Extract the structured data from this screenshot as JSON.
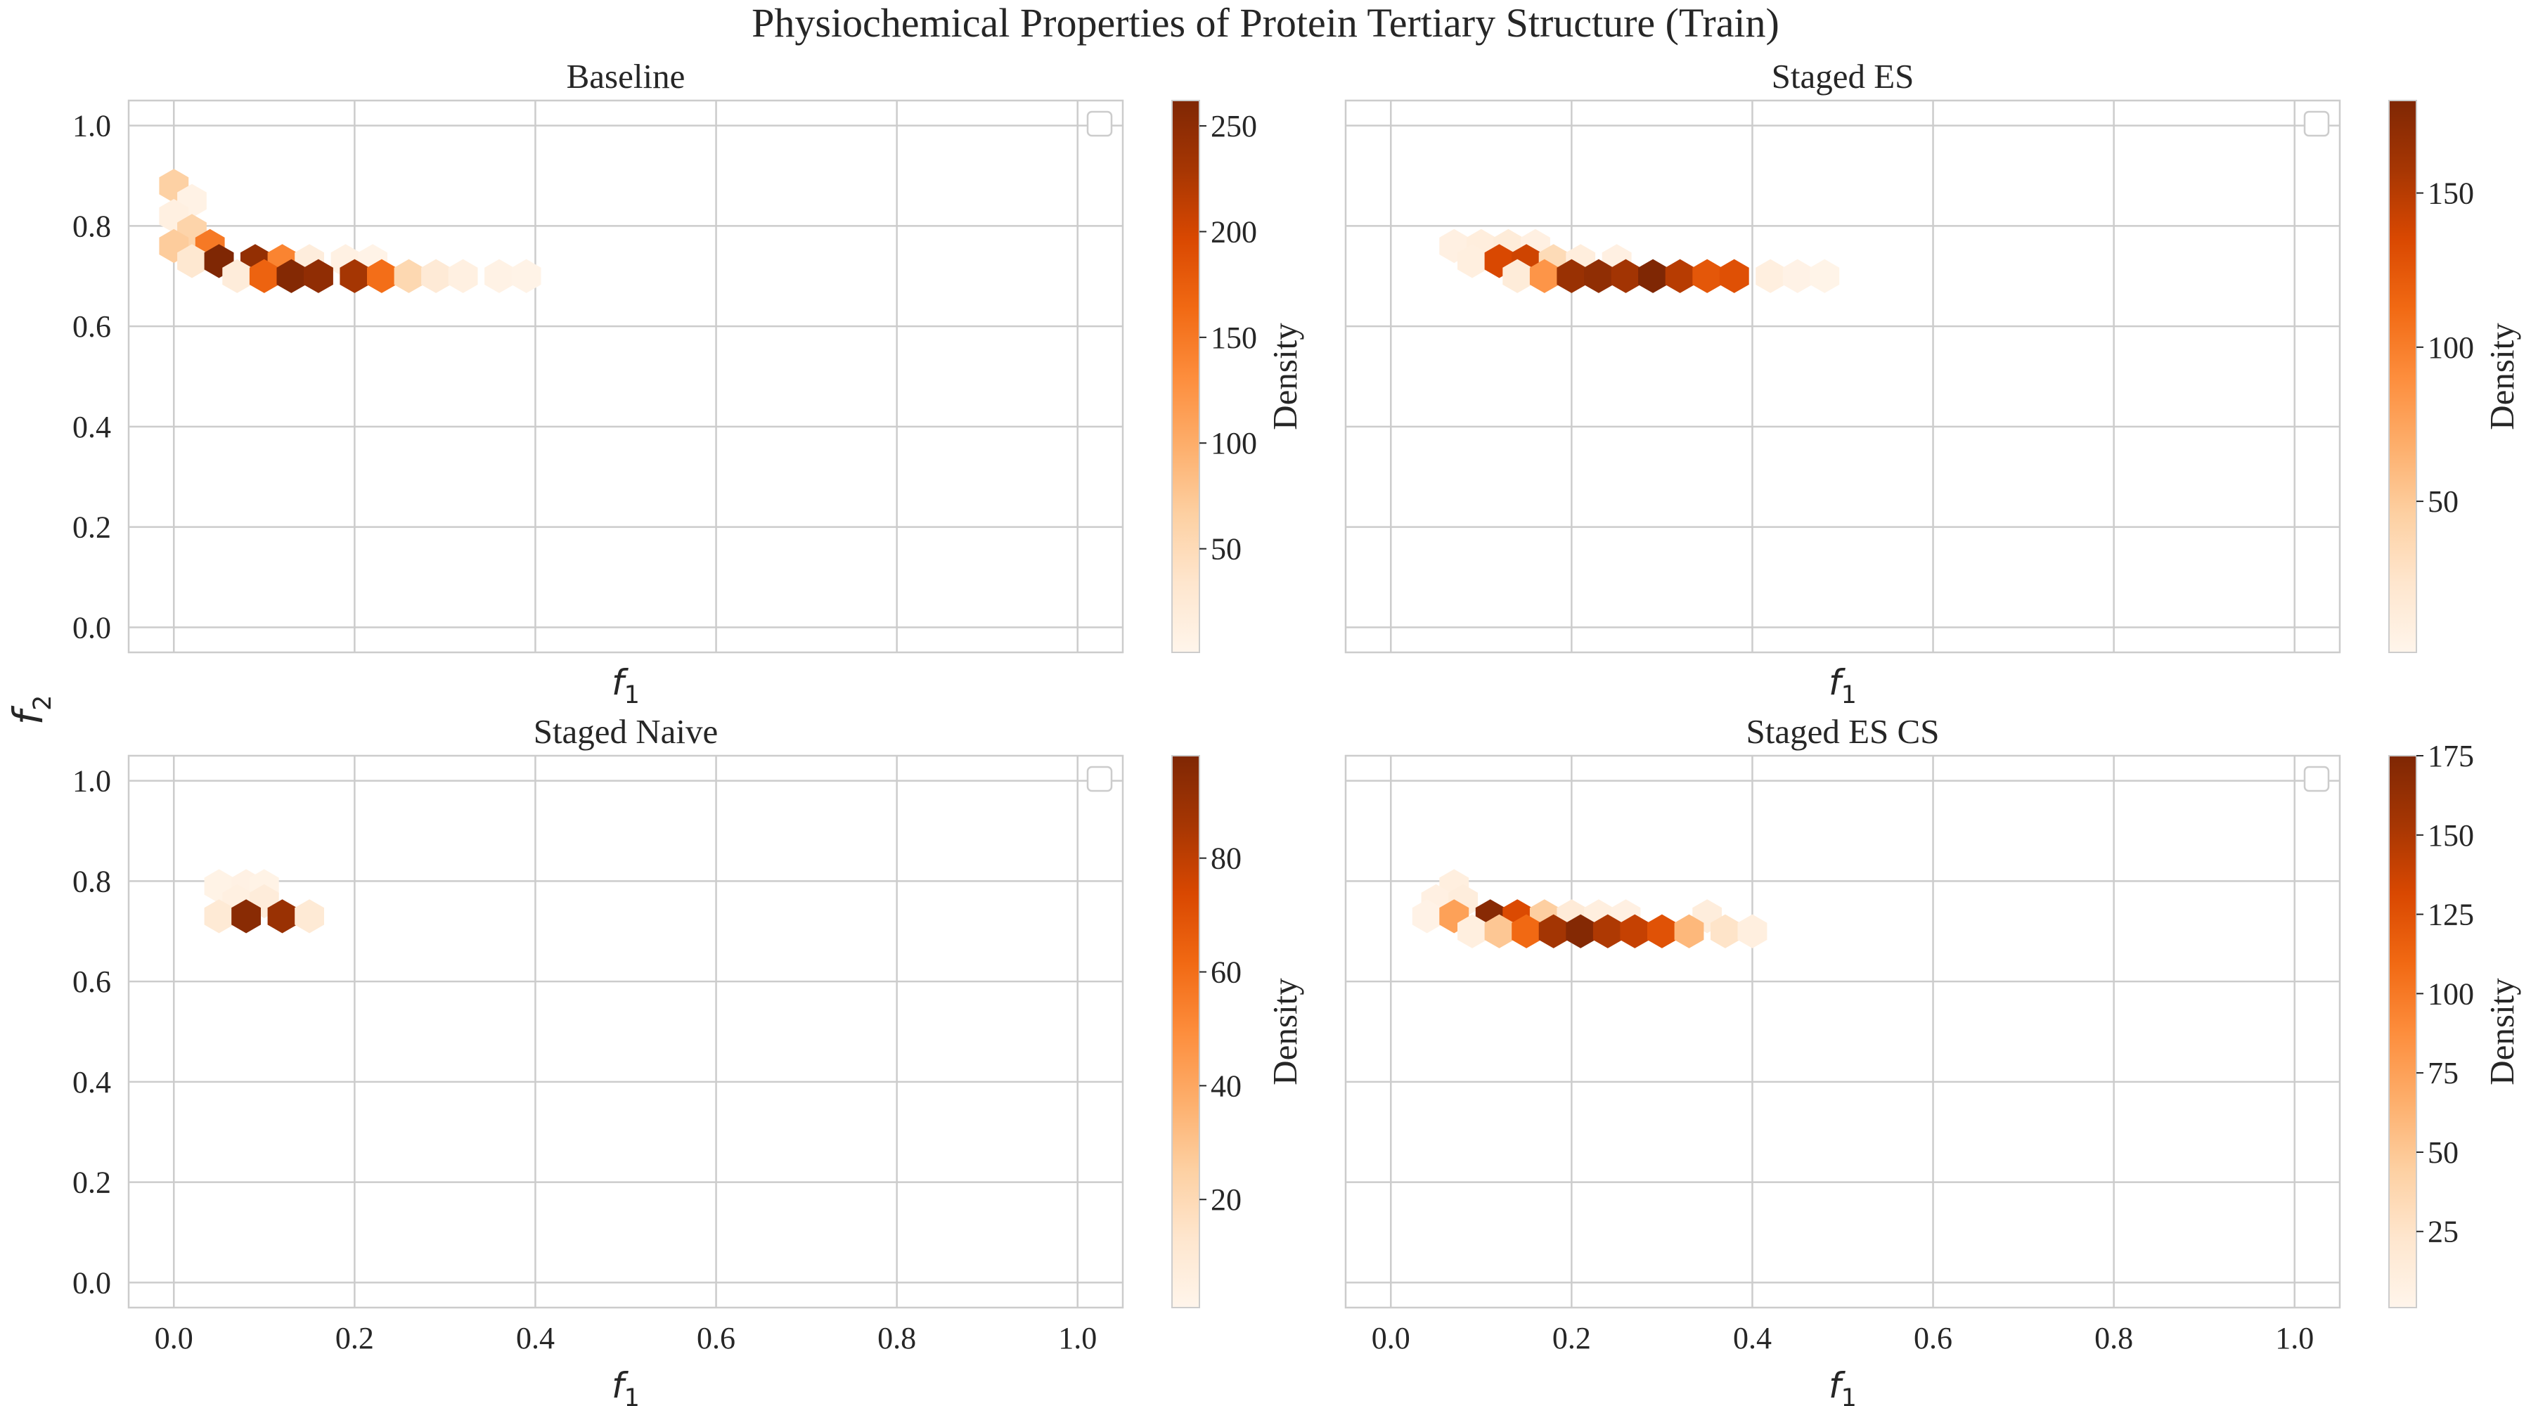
{
  "chart_data": {
    "type": "heatmap",
    "subtype": "hexbin",
    "suptitle": "Physiochemical Properties of Protein Tertiary Structure (Train)",
    "shared_ylabel": {
      "symbol": "f",
      "subscript": "2"
    },
    "xlabel": {
      "symbol": "f",
      "subscript": "1"
    },
    "colormap": "Oranges",
    "grid": true,
    "legend": "top-right (empty)",
    "panels": [
      {
        "title": "Baseline",
        "xlim": [
          -0.05,
          1.05
        ],
        "ylim": [
          -0.05,
          1.05
        ],
        "xticks": [
          "0.0",
          "0.2",
          "0.4",
          "0.6",
          "0.8",
          "1.0"
        ],
        "yticks": [
          "0.0",
          "0.2",
          "0.4",
          "0.6",
          "0.8",
          "1.0"
        ],
        "show_xticklabels": false,
        "show_yticklabels": true,
        "colorbar": {
          "label": "Density",
          "min": 1,
          "max": 262,
          "ticks": [
            "50",
            "100",
            "150",
            "200",
            "250"
          ]
        },
        "bins": [
          {
            "x": 0.0,
            "y": 0.88,
            "v": 65
          },
          {
            "x": 0.02,
            "y": 0.85,
            "v": 8
          },
          {
            "x": 0.0,
            "y": 0.82,
            "v": 12
          },
          {
            "x": 0.02,
            "y": 0.79,
            "v": 60
          },
          {
            "x": 0.0,
            "y": 0.76,
            "v": 70
          },
          {
            "x": 0.04,
            "y": 0.76,
            "v": 150
          },
          {
            "x": 0.02,
            "y": 0.73,
            "v": 30
          },
          {
            "x": 0.05,
            "y": 0.73,
            "v": 262
          },
          {
            "x": 0.09,
            "y": 0.73,
            "v": 245
          },
          {
            "x": 0.12,
            "y": 0.73,
            "v": 140
          },
          {
            "x": 0.15,
            "y": 0.73,
            "v": 18
          },
          {
            "x": 0.19,
            "y": 0.73,
            "v": 10
          },
          {
            "x": 0.22,
            "y": 0.73,
            "v": 5
          },
          {
            "x": 0.07,
            "y": 0.7,
            "v": 20
          },
          {
            "x": 0.1,
            "y": 0.7,
            "v": 170
          },
          {
            "x": 0.13,
            "y": 0.7,
            "v": 258
          },
          {
            "x": 0.16,
            "y": 0.7,
            "v": 248
          },
          {
            "x": 0.2,
            "y": 0.7,
            "v": 230
          },
          {
            "x": 0.23,
            "y": 0.7,
            "v": 160
          },
          {
            "x": 0.26,
            "y": 0.7,
            "v": 55
          },
          {
            "x": 0.29,
            "y": 0.7,
            "v": 25
          },
          {
            "x": 0.32,
            "y": 0.7,
            "v": 12
          },
          {
            "x": 0.36,
            "y": 0.7,
            "v": 8
          },
          {
            "x": 0.39,
            "y": 0.7,
            "v": 5
          }
        ]
      },
      {
        "title": "Staged ES",
        "xlim": [
          -0.05,
          1.05
        ],
        "ylim": [
          -0.05,
          1.05
        ],
        "xticks": [
          "0.0",
          "0.2",
          "0.4",
          "0.6",
          "0.8",
          "1.0"
        ],
        "yticks": [
          "0.0",
          "0.2",
          "0.4",
          "0.6",
          "0.8",
          "1.0"
        ],
        "show_xticklabels": false,
        "show_yticklabels": false,
        "colorbar": {
          "label": "Density",
          "min": 1,
          "max": 180,
          "ticks": [
            "50",
            "100",
            "150"
          ]
        },
        "bins": [
          {
            "x": 0.07,
            "y": 0.76,
            "v": 8
          },
          {
            "x": 0.1,
            "y": 0.76,
            "v": 12
          },
          {
            "x": 0.13,
            "y": 0.76,
            "v": 15
          },
          {
            "x": 0.16,
            "y": 0.76,
            "v": 8
          },
          {
            "x": 0.09,
            "y": 0.73,
            "v": 10
          },
          {
            "x": 0.12,
            "y": 0.73,
            "v": 135
          },
          {
            "x": 0.15,
            "y": 0.73,
            "v": 140
          },
          {
            "x": 0.18,
            "y": 0.73,
            "v": 35
          },
          {
            "x": 0.21,
            "y": 0.73,
            "v": 12
          },
          {
            "x": 0.25,
            "y": 0.73,
            "v": 8
          },
          {
            "x": 0.14,
            "y": 0.7,
            "v": 15
          },
          {
            "x": 0.17,
            "y": 0.7,
            "v": 85
          },
          {
            "x": 0.2,
            "y": 0.7,
            "v": 165
          },
          {
            "x": 0.23,
            "y": 0.7,
            "v": 170
          },
          {
            "x": 0.26,
            "y": 0.7,
            "v": 160
          },
          {
            "x": 0.29,
            "y": 0.7,
            "v": 180
          },
          {
            "x": 0.32,
            "y": 0.7,
            "v": 150
          },
          {
            "x": 0.35,
            "y": 0.7,
            "v": 125
          },
          {
            "x": 0.38,
            "y": 0.7,
            "v": 130
          },
          {
            "x": 0.42,
            "y": 0.7,
            "v": 10
          },
          {
            "x": 0.45,
            "y": 0.7,
            "v": 5
          },
          {
            "x": 0.48,
            "y": 0.7,
            "v": 3
          }
        ]
      },
      {
        "title": "Staged Naive",
        "xlim": [
          -0.05,
          1.05
        ],
        "ylim": [
          -0.05,
          1.05
        ],
        "xticks": [
          "0.0",
          "0.2",
          "0.4",
          "0.6",
          "0.8",
          "1.0"
        ],
        "yticks": [
          "0.0",
          "0.2",
          "0.4",
          "0.6",
          "0.8",
          "1.0"
        ],
        "show_xticklabels": true,
        "show_yticklabels": true,
        "colorbar": {
          "label": "Density",
          "min": 1,
          "max": 98,
          "ticks": [
            "20",
            "40",
            "60",
            "80"
          ]
        },
        "bins": [
          {
            "x": 0.05,
            "y": 0.79,
            "v": 3
          },
          {
            "x": 0.08,
            "y": 0.79,
            "v": 4
          },
          {
            "x": 0.1,
            "y": 0.79,
            "v": 3
          },
          {
            "x": 0.07,
            "y": 0.76,
            "v": 5
          },
          {
            "x": 0.1,
            "y": 0.76,
            "v": 8
          },
          {
            "x": 0.05,
            "y": 0.73,
            "v": 10
          },
          {
            "x": 0.08,
            "y": 0.73,
            "v": 95
          },
          {
            "x": 0.12,
            "y": 0.73,
            "v": 90
          },
          {
            "x": 0.15,
            "y": 0.73,
            "v": 10
          }
        ]
      },
      {
        "title": "Staged ES CS",
        "xlim": [
          -0.05,
          1.05
        ],
        "ylim": [
          -0.05,
          1.05
        ],
        "xticks": [
          "0.0",
          "0.2",
          "0.4",
          "0.6",
          "0.8",
          "1.0"
        ],
        "yticks": [
          "0.0",
          "0.2",
          "0.4",
          "0.6",
          "0.8",
          "1.0"
        ],
        "show_xticklabels": true,
        "show_yticklabels": false,
        "colorbar": {
          "label": "Density",
          "min": 1,
          "max": 175,
          "ticks": [
            "25",
            "50",
            "75",
            "100",
            "125",
            "150",
            "175"
          ]
        },
        "bins": [
          {
            "x": 0.07,
            "y": 0.79,
            "v": 10
          },
          {
            "x": 0.05,
            "y": 0.76,
            "v": 8
          },
          {
            "x": 0.08,
            "y": 0.76,
            "v": 12
          },
          {
            "x": 0.04,
            "y": 0.73,
            "v": 5
          },
          {
            "x": 0.07,
            "y": 0.73,
            "v": 75
          },
          {
            "x": 0.11,
            "y": 0.73,
            "v": 170
          },
          {
            "x": 0.14,
            "y": 0.73,
            "v": 130
          },
          {
            "x": 0.17,
            "y": 0.73,
            "v": 45
          },
          {
            "x": 0.2,
            "y": 0.73,
            "v": 15
          },
          {
            "x": 0.23,
            "y": 0.73,
            "v": 10
          },
          {
            "x": 0.26,
            "y": 0.73,
            "v": 8
          },
          {
            "x": 0.35,
            "y": 0.73,
            "v": 12
          },
          {
            "x": 0.09,
            "y": 0.7,
            "v": 10
          },
          {
            "x": 0.12,
            "y": 0.7,
            "v": 50
          },
          {
            "x": 0.15,
            "y": 0.7,
            "v": 110
          },
          {
            "x": 0.18,
            "y": 0.7,
            "v": 155
          },
          {
            "x": 0.21,
            "y": 0.7,
            "v": 172
          },
          {
            "x": 0.24,
            "y": 0.7,
            "v": 150
          },
          {
            "x": 0.27,
            "y": 0.7,
            "v": 140
          },
          {
            "x": 0.3,
            "y": 0.7,
            "v": 125
          },
          {
            "x": 0.33,
            "y": 0.7,
            "v": 60
          },
          {
            "x": 0.37,
            "y": 0.7,
            "v": 25
          },
          {
            "x": 0.4,
            "y": 0.7,
            "v": 10
          }
        ]
      }
    ]
  }
}
